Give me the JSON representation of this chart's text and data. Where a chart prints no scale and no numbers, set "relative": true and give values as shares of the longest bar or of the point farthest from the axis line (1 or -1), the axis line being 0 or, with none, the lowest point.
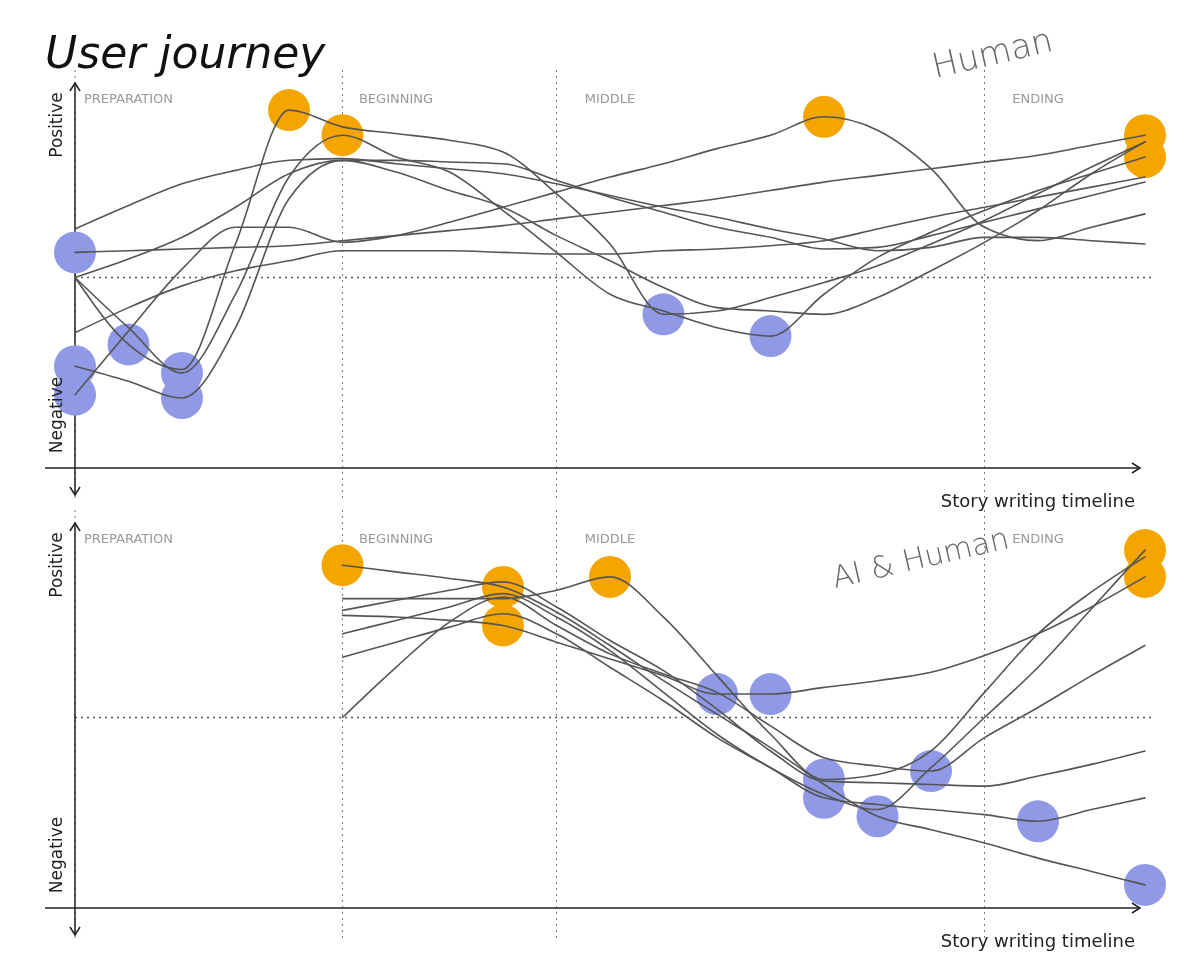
{
  "chart_data": [
    {
      "type": "line",
      "title": "User journey",
      "subtitle": "Human",
      "xlabel": "Story writing timeline",
      "relative": true,
      "grid": true,
      "ref_lines": [
        {
          "axis": "y",
          "value": 0,
          "line_style": "dotted",
          "color": "#555555"
        }
      ],
      "categories": [
        null,
        "PREPARATION",
        null,
        null,
        null,
        null,
        "BEGINNING",
        null,
        null,
        null,
        "MIDDLE",
        null,
        null,
        null,
        null,
        null,
        null,
        null,
        "ENDING",
        null,
        null
      ],
      "annotations": [
        "Positive",
        "Negative"
      ],
      "series": [
        {
          "type": "line",
          "color": "#555555",
          "values": [
            0.15,
            0.16,
            0.17,
            0.18,
            0.19,
            0.22,
            0.25,
            0.28,
            0.31,
            0.35,
            0.39,
            0.43,
            0.47,
            0.52,
            0.57,
            0.61,
            0.65,
            0.69,
            0.73,
            0.79,
            0.85
          ]
        },
        {
          "type": "line",
          "color": "#555555",
          "values": [
            0.29,
            0.43,
            0.56,
            0.64,
            0.7,
            0.71,
            0.68,
            0.65,
            0.62,
            0.56,
            0.49,
            0.42,
            0.36,
            0.29,
            0.23,
            0.16,
            0.18,
            0.24,
            0.24,
            0.22,
            0.2
          ]
        },
        {
          "type": "line",
          "color": "#555555",
          "values": [
            0,
            -0.4,
            -0.55,
            0.2,
            1.0,
            0.9,
            0.86,
            0.82,
            0.75,
            0.5,
            0.2,
            -0.22,
            -0.2,
            -0.12,
            -0.03,
            0.07,
            0.2,
            0.34,
            0.5,
            0.66,
            0.81
          ]
        },
        {
          "type": "line",
          "color": "#555555",
          "values": [
            0,
            -0.3,
            -0.57,
            -0.1,
            0.6,
            0.85,
            0.72,
            0.63,
            0.4,
            0.15,
            -0.1,
            -0.2,
            -0.3,
            -0.35,
            -0.1,
            0.12,
            0.27,
            0.4,
            0.52,
            0.62,
            0.72
          ]
        },
        {
          "type": "line",
          "color": "#555555",
          "values": [
            -0.53,
            -0.62,
            -0.72,
            -0.3,
            0.47,
            0.7,
            0.63,
            0.52,
            0.42,
            0.25,
            0.1,
            -0.06,
            -0.18,
            -0.2,
            -0.22,
            -0.12,
            0.04,
            0.21,
            0.4,
            0.62,
            0.81
          ]
        },
        {
          "type": "line",
          "color": "#555555",
          "values": [
            -0.7,
            -0.32,
            0.05,
            0.3,
            0.3,
            0.21,
            0.25,
            0.33,
            0.42,
            0.51,
            0.6,
            0.68,
            0.77,
            0.85,
            0.96,
            0.88,
            0.65,
            0.3,
            0.22,
            0.3,
            0.38
          ]
        },
        {
          "type": "line",
          "color": "#555555",
          "values": [
            -0.33,
            -0.18,
            -0.05,
            0.04,
            0.1,
            0.16,
            0.16,
            0.16,
            0.15,
            0.14,
            0.14,
            0.16,
            0.17,
            0.19,
            0.22,
            0.29,
            0.36,
            0.42,
            0.48,
            0.54,
            0.6
          ]
        },
        {
          "type": "line",
          "color": "#555555",
          "values": [
            0,
            0.11,
            0.24,
            0.42,
            0.62,
            0.7,
            0.7,
            0.69,
            0.68,
            0.58,
            0.48,
            0.39,
            0.3,
            0.24,
            0.17,
            0.18,
            0.25,
            0.33,
            0.41,
            0.49,
            0.57
          ]
        },
        {
          "type": "scatter",
          "color": "#f5a500",
          "values": [
            null,
            null,
            null,
            null,
            1.0,
            0.85,
            null,
            null,
            null,
            null,
            null,
            null,
            null,
            null,
            0.96,
            null,
            null,
            null,
            null,
            null,
            0.85
          ]
        },
        {
          "type": "scatter",
          "color": "#f5a500",
          "values": [
            null,
            null,
            null,
            null,
            null,
            null,
            null,
            null,
            null,
            null,
            null,
            null,
            null,
            null,
            null,
            null,
            null,
            null,
            null,
            null,
            0.72
          ]
        },
        {
          "type": "scatter",
          "color": "#8f99e6",
          "values": [
            0.15,
            -0.4,
            -0.57,
            null,
            null,
            null,
            null,
            null,
            null,
            null,
            null,
            -0.22,
            null,
            -0.35,
            null,
            null,
            null,
            null,
            null,
            null,
            null
          ]
        },
        {
          "type": "scatter",
          "color": "#8f99e6",
          "values": [
            -0.53,
            null,
            -0.72,
            null,
            null,
            null,
            null,
            null,
            null,
            null,
            null,
            null,
            null,
            null,
            null,
            null,
            null,
            null,
            null,
            null,
            null
          ]
        },
        {
          "type": "scatter",
          "color": "#8f99e6",
          "values": [
            -0.7,
            null,
            null,
            null,
            null,
            null,
            null,
            null,
            null,
            null,
            null,
            null,
            null,
            null,
            null,
            null,
            null,
            null,
            null,
            null,
            null
          ]
        }
      ]
    },
    {
      "type": "line",
      "subtitle": "AI & Human",
      "xlabel": "Story writing timeline",
      "relative": true,
      "grid": true,
      "ref_lines": [
        {
          "axis": "y",
          "value": 0,
          "line_style": "dotted",
          "color": "#555555"
        }
      ],
      "categories": [
        null,
        "PREPARATION",
        null,
        null,
        null,
        null,
        "BEGINNING",
        null,
        null,
        null,
        "MIDDLE",
        null,
        null,
        null,
        null,
        null,
        null,
        null,
        "ENDING",
        null,
        null
      ],
      "annotations": [
        "Positive",
        "Negative"
      ],
      "series": [
        {
          "type": "line",
          "color": "#555555",
          "values": [
            null,
            null,
            null,
            null,
            null,
            0.91,
            0.87,
            0.83,
            0.78,
            0.63,
            0.43,
            0.22,
            0.02,
            -0.18,
            -0.4,
            -0.59,
            -0.67,
            -0.75,
            -0.84,
            -0.92,
            -1.0
          ]
        },
        {
          "type": "line",
          "color": "#555555",
          "values": [
            null,
            null,
            null,
            null,
            null,
            0.71,
            0.71,
            0.71,
            0.71,
            0.76,
            0.84,
            0.6,
            0.25,
            -0.1,
            -0.37,
            -0.34,
            -0.2,
            0.15,
            0.5,
            0.75,
            0.96
          ]
        },
        {
          "type": "line",
          "color": "#555555",
          "values": [
            null,
            null,
            null,
            null,
            null,
            0.61,
            0.6,
            0.58,
            0.55,
            0.45,
            0.35,
            0.25,
            0.14,
            0.14,
            0.18,
            0.22,
            0.27,
            0.37,
            0.5,
            0.66,
            0.84
          ]
        },
        {
          "type": "line",
          "color": "#555555",
          "values": [
            null,
            null,
            null,
            null,
            null,
            0.5,
            0.58,
            0.66,
            0.74,
            0.6,
            0.4,
            0.15,
            -0.1,
            -0.3,
            -0.46,
            -0.55,
            -0.3,
            0.0,
            0.3,
            0.65,
            1.0
          ]
        },
        {
          "type": "line",
          "color": "#555555",
          "values": [
            null,
            null,
            null,
            null,
            null,
            0.36,
            0.45,
            0.54,
            0.62,
            0.5,
            0.3,
            0.1,
            -0.12,
            -0.3,
            -0.48,
            -0.52,
            -0.55,
            -0.58,
            -0.62,
            -0.55,
            -0.48
          ]
        },
        {
          "type": "line",
          "color": "#555555",
          "values": [
            null,
            null,
            null,
            null,
            null,
            0,
            0.3,
            0.57,
            0.72,
            0.55,
            0.38,
            0.26,
            0.15,
            -0.05,
            -0.24,
            -0.29,
            -0.32,
            -0.12,
            0.06,
            0.25,
            0.43
          ]
        },
        {
          "type": "line",
          "color": "#555555",
          "values": [
            null,
            null,
            null,
            null,
            null,
            0.64,
            0.7,
            0.76,
            0.81,
            0.66,
            0.46,
            0.28,
            0.05,
            -0.2,
            -0.38,
            -0.39,
            -0.4,
            -0.41,
            -0.35,
            -0.28,
            -0.2
          ]
        },
        {
          "type": "scatter",
          "color": "#f5a500",
          "values": [
            null,
            null,
            null,
            null,
            null,
            0.91,
            null,
            null,
            0.78,
            null,
            0.84,
            null,
            null,
            null,
            null,
            null,
            null,
            null,
            null,
            null,
            1.0
          ]
        },
        {
          "type": "scatter",
          "color": "#f5a500",
          "values": [
            null,
            null,
            null,
            null,
            null,
            null,
            null,
            null,
            0.55,
            null,
            null,
            null,
            null,
            null,
            null,
            null,
            null,
            null,
            null,
            null,
            0.84
          ]
        },
        {
          "type": "scatter",
          "color": "#8f99e6",
          "values": [
            null,
            null,
            null,
            null,
            null,
            null,
            null,
            null,
            null,
            null,
            null,
            null,
            0.14,
            0.14,
            -0.37,
            -0.59,
            -0.32,
            null,
            -0.62,
            null,
            -1.0
          ]
        },
        {
          "type": "scatter",
          "color": "#8f99e6",
          "values": [
            null,
            null,
            null,
            null,
            null,
            null,
            null,
            null,
            null,
            null,
            null,
            null,
            null,
            null,
            -0.48,
            null,
            null,
            null,
            null,
            null,
            null
          ]
        }
      ]
    }
  ]
}
